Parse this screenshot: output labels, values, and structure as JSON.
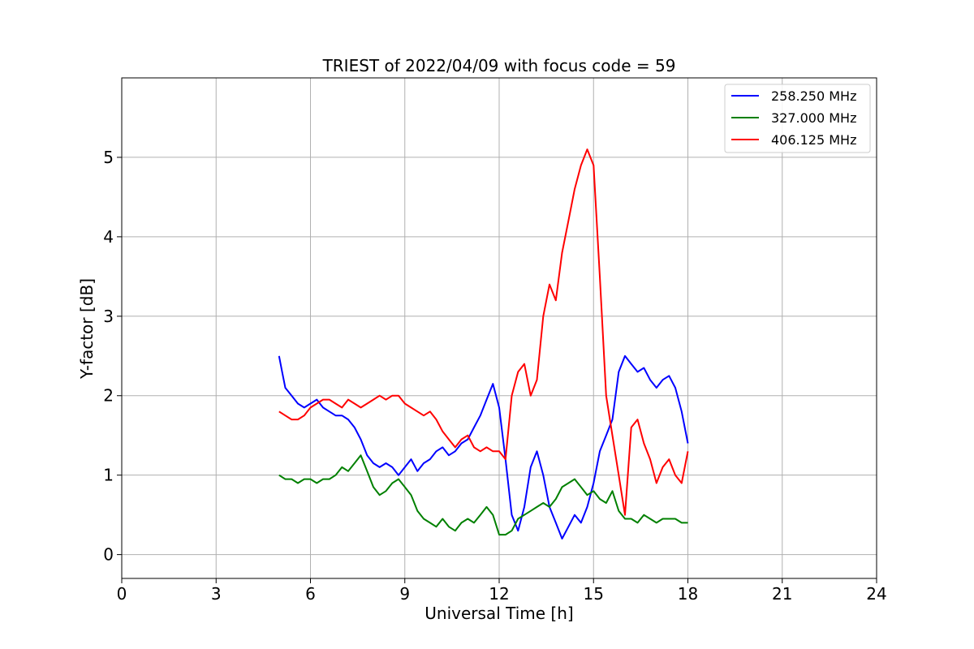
{
  "chart_data": {
    "type": "line",
    "title": "TRIEST of 2022/04/09 with focus code = 59",
    "xlabel": "Universal Time [h]",
    "ylabel": "Y-factor [dB]",
    "xlim": [
      0,
      24
    ],
    "ylim": [
      -0.3,
      6.0
    ],
    "xticks": [
      0,
      3,
      6,
      9,
      12,
      15,
      18,
      21,
      24
    ],
    "yticks": [
      0,
      1,
      2,
      3,
      4,
      5
    ],
    "grid": true,
    "legend_position": "top-right",
    "series": [
      {
        "name": "258.250 MHz",
        "color": "#0000ff",
        "x": [
          5.0,
          5.1,
          5.2,
          5.4,
          5.6,
          5.8,
          6.0,
          6.2,
          6.4,
          6.6,
          6.8,
          7.0,
          7.2,
          7.4,
          7.6,
          7.8,
          8.0,
          8.2,
          8.4,
          8.6,
          8.8,
          9.0,
          9.2,
          9.4,
          9.6,
          9.8,
          10.0,
          10.2,
          10.4,
          10.6,
          10.8,
          11.0,
          11.2,
          11.4,
          11.6,
          11.8,
          12.0,
          12.2,
          12.4,
          12.6,
          12.8,
          13.0,
          13.2,
          13.4,
          13.6,
          13.8,
          14.0,
          14.2,
          14.4,
          14.6,
          14.8,
          15.0,
          15.2,
          15.4,
          15.6,
          15.8,
          16.0,
          16.2,
          16.4,
          16.6,
          16.8,
          17.0,
          17.2,
          17.4,
          17.6,
          17.8,
          18.0
        ],
        "y": [
          2.5,
          2.3,
          2.1,
          2.0,
          1.9,
          1.85,
          1.9,
          1.95,
          1.85,
          1.8,
          1.75,
          1.75,
          1.7,
          1.6,
          1.45,
          1.25,
          1.15,
          1.1,
          1.15,
          1.1,
          1.0,
          1.1,
          1.2,
          1.05,
          1.15,
          1.2,
          1.3,
          1.35,
          1.25,
          1.3,
          1.4,
          1.45,
          1.6,
          1.75,
          1.95,
          2.15,
          1.85,
          1.2,
          0.5,
          0.3,
          0.6,
          1.1,
          1.3,
          1.0,
          0.6,
          0.4,
          0.2,
          0.35,
          0.5,
          0.4,
          0.6,
          0.9,
          1.3,
          1.5,
          1.7,
          2.3,
          2.5,
          2.4,
          2.3,
          2.35,
          2.2,
          2.1,
          2.2,
          2.25,
          2.1,
          1.8,
          1.4
        ]
      },
      {
        "name": "327.000 MHz",
        "color": "#008000",
        "x": [
          5.0,
          5.2,
          5.4,
          5.6,
          5.8,
          6.0,
          6.2,
          6.4,
          6.6,
          6.8,
          7.0,
          7.2,
          7.4,
          7.6,
          7.8,
          8.0,
          8.2,
          8.4,
          8.6,
          8.8,
          9.0,
          9.2,
          9.4,
          9.6,
          9.8,
          10.0,
          10.2,
          10.4,
          10.6,
          10.8,
          11.0,
          11.2,
          11.4,
          11.6,
          11.8,
          12.0,
          12.2,
          12.4,
          12.6,
          12.8,
          13.0,
          13.2,
          13.4,
          13.6,
          13.8,
          14.0,
          14.2,
          14.4,
          14.6,
          14.8,
          15.0,
          15.2,
          15.4,
          15.6,
          15.8,
          16.0,
          16.2,
          16.4,
          16.6,
          16.8,
          17.0,
          17.2,
          17.4,
          17.6,
          17.8,
          18.0
        ],
        "y": [
          1.0,
          0.95,
          0.95,
          0.9,
          0.95,
          0.95,
          0.9,
          0.95,
          0.95,
          1.0,
          1.1,
          1.05,
          1.15,
          1.25,
          1.05,
          0.85,
          0.75,
          0.8,
          0.9,
          0.95,
          0.85,
          0.75,
          0.55,
          0.45,
          0.4,
          0.35,
          0.45,
          0.35,
          0.3,
          0.4,
          0.45,
          0.4,
          0.5,
          0.6,
          0.5,
          0.25,
          0.25,
          0.3,
          0.45,
          0.5,
          0.55,
          0.6,
          0.65,
          0.6,
          0.7,
          0.85,
          0.9,
          0.95,
          0.85,
          0.75,
          0.8,
          0.7,
          0.65,
          0.8,
          0.55,
          0.45,
          0.45,
          0.4,
          0.5,
          0.45,
          0.4,
          0.45,
          0.45,
          0.45,
          0.4,
          0.4
        ]
      },
      {
        "name": "406.125 MHz",
        "color": "#ff0000",
        "x": [
          5.0,
          5.2,
          5.4,
          5.6,
          5.8,
          6.0,
          6.2,
          6.4,
          6.6,
          6.8,
          7.0,
          7.2,
          7.4,
          7.6,
          7.8,
          8.0,
          8.2,
          8.4,
          8.6,
          8.8,
          9.0,
          9.2,
          9.4,
          9.6,
          9.8,
          10.0,
          10.2,
          10.4,
          10.6,
          10.8,
          11.0,
          11.2,
          11.4,
          11.6,
          11.8,
          12.0,
          12.2,
          12.4,
          12.6,
          12.8,
          13.0,
          13.2,
          13.4,
          13.6,
          13.8,
          14.0,
          14.2,
          14.4,
          14.6,
          14.8,
          15.0,
          15.2,
          15.4,
          15.6,
          15.8,
          16.0,
          16.2,
          16.4,
          16.6,
          16.8,
          17.0,
          17.2,
          17.4,
          17.6,
          17.8,
          18.0
        ],
        "y": [
          1.8,
          1.75,
          1.7,
          1.7,
          1.75,
          1.85,
          1.9,
          1.95,
          1.95,
          1.9,
          1.85,
          1.95,
          1.9,
          1.85,
          1.9,
          1.95,
          2.0,
          1.95,
          2.0,
          2.0,
          1.9,
          1.85,
          1.8,
          1.75,
          1.8,
          1.7,
          1.55,
          1.45,
          1.35,
          1.45,
          1.5,
          1.35,
          1.3,
          1.35,
          1.3,
          1.3,
          1.2,
          2.0,
          2.3,
          2.4,
          2.0,
          2.2,
          3.0,
          3.4,
          3.2,
          3.8,
          4.2,
          4.6,
          4.9,
          5.1,
          4.9,
          3.5,
          2.0,
          1.5,
          1.0,
          0.5,
          1.6,
          1.7,
          1.4,
          1.2,
          0.9,
          1.1,
          1.2,
          1.0,
          0.9,
          1.3
        ]
      }
    ]
  },
  "legend": {
    "items": [
      {
        "label": "258.250 MHz",
        "color": "#0000ff"
      },
      {
        "label": "327.000 MHz",
        "color": "#008000"
      },
      {
        "label": "406.125 MHz",
        "color": "#ff0000"
      }
    ]
  }
}
